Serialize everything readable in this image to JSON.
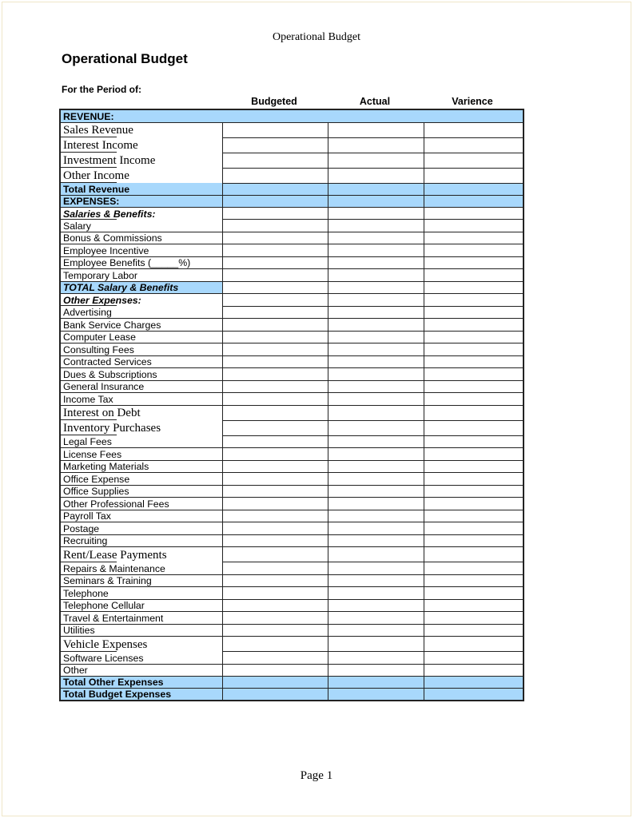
{
  "running_header": "Operational Budget",
  "title": "Operational Budget",
  "period_label": "For the Period of:",
  "columns": [
    "Budgeted",
    "Actual",
    "Varience"
  ],
  "colors": {
    "highlight": "#a8d8fc",
    "border": "#222222"
  },
  "rows": [
    {
      "label": "REVENUE:",
      "kind": "header"
    },
    {
      "label": "Sales Revenue",
      "kind": "serif"
    },
    {
      "label": "Interest Income",
      "kind": "serif"
    },
    {
      "label": "Investment Income",
      "kind": "serif"
    },
    {
      "label": "Other Income",
      "kind": "serif"
    },
    {
      "label": "Total Revenue",
      "kind": "total"
    },
    {
      "label": "EXPENSES:",
      "kind": "total"
    },
    {
      "label": "Salaries & Benefits:",
      "kind": "subhead"
    },
    {
      "label": "Salary",
      "kind": "sans"
    },
    {
      "label": "Bonus & Commissions",
      "kind": "sans"
    },
    {
      "label": "Employee Incentive",
      "kind": "sans"
    },
    {
      "label": "Employee Benefits (_____%)",
      "kind": "sans"
    },
    {
      "label": "Temporary Labor",
      "kind": "sans"
    },
    {
      "label": "TOTAL Salary & Benefits",
      "kind": "totallabel"
    },
    {
      "label": "Other Expenses:",
      "kind": "subhead"
    },
    {
      "label": "Advertising",
      "kind": "sans"
    },
    {
      "label": "Bank Service Charges",
      "kind": "sans"
    },
    {
      "label": "Computer Lease",
      "kind": "sans"
    },
    {
      "label": "Consulting Fees",
      "kind": "sans"
    },
    {
      "label": "Contracted Services",
      "kind": "sans"
    },
    {
      "label": "Dues & Subscriptions",
      "kind": "sans"
    },
    {
      "label": "General Insurance",
      "kind": "sans"
    },
    {
      "label": "Income Tax",
      "kind": "sans"
    },
    {
      "label": "Interest on Debt",
      "kind": "serif"
    },
    {
      "label": "Inventory Purchases",
      "kind": "serif"
    },
    {
      "label": "Legal Fees",
      "kind": "sans"
    },
    {
      "label": "License Fees",
      "kind": "sans"
    },
    {
      "label": "Marketing Materials",
      "kind": "sans"
    },
    {
      "label": "Office Expense",
      "kind": "sans"
    },
    {
      "label": "Office Supplies",
      "kind": "sans"
    },
    {
      "label": "Other Professional Fees",
      "kind": "sans"
    },
    {
      "label": "Payroll Tax",
      "kind": "sans"
    },
    {
      "label": "Postage",
      "kind": "sans"
    },
    {
      "label": "Recruiting",
      "kind": "sans"
    },
    {
      "label": "Rent/Lease Payments",
      "kind": "serif"
    },
    {
      "label": "Repairs & Maintenance",
      "kind": "sans"
    },
    {
      "label": "Seminars & Training",
      "kind": "sans"
    },
    {
      "label": "Telephone",
      "kind": "sans"
    },
    {
      "label": "Telephone Cellular",
      "kind": "sans"
    },
    {
      "label": "Travel & Entertainment",
      "kind": "sans"
    },
    {
      "label": "Utilities",
      "kind": "sans"
    },
    {
      "label": "Vehicle Expenses",
      "kind": "serif"
    },
    {
      "label": "Software Licenses",
      "kind": "sans"
    },
    {
      "label": "Other",
      "kind": "sans"
    },
    {
      "label": "Total Other Expenses",
      "kind": "total"
    },
    {
      "label": "Total Budget Expenses",
      "kind": "total"
    }
  ],
  "footer": "Page 1"
}
